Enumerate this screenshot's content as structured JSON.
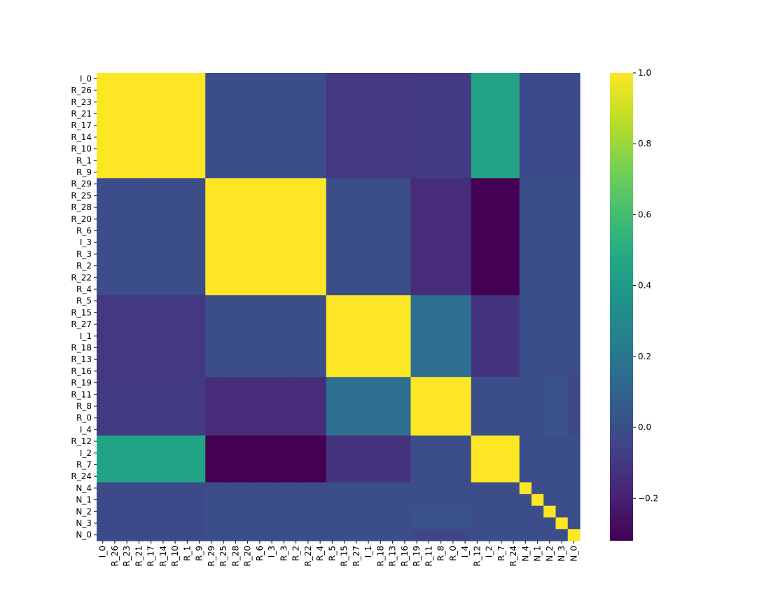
{
  "chart_data": {
    "type": "heatmap",
    "title": "",
    "xlabel": "",
    "ylabel": "",
    "colormap": "viridis",
    "vmin": -0.32,
    "vmax": 1.0,
    "colorbar_ticks": [
      {
        "value": 1.0,
        "label": "1.0"
      },
      {
        "value": 0.8,
        "label": "0.8"
      },
      {
        "value": 0.6,
        "label": "0.6"
      },
      {
        "value": 0.4,
        "label": "0.4"
      },
      {
        "value": 0.2,
        "label": "0.2"
      },
      {
        "value": 0.0,
        "label": "0.0"
      },
      {
        "value": -0.2,
        "label": "−0.2"
      }
    ],
    "labels": [
      "I_0",
      "R_26",
      "R_23",
      "R_21",
      "R_17",
      "R_14",
      "R_10",
      "R_1",
      "R_9",
      "R_29",
      "R_25",
      "R_28",
      "R_20",
      "R_6",
      "I_3",
      "R_3",
      "R_2",
      "R_22",
      "R_4",
      "R_5",
      "R_15",
      "R_27",
      "I_1",
      "R_18",
      "R_13",
      "R_16",
      "R_19",
      "R_11",
      "R_8",
      "R_0",
      "I_4",
      "R_12",
      "I_2",
      "R_7",
      "R_24",
      "N_4",
      "N_1",
      "N_2",
      "N_3",
      "N_0"
    ],
    "groups": [
      {
        "labels": [
          "I_0",
          "R_26",
          "R_23",
          "R_21",
          "R_17",
          "R_14",
          "R_10",
          "R_1",
          "R_9"
        ]
      },
      {
        "labels": [
          "R_29",
          "R_25",
          "R_28",
          "R_20",
          "R_6",
          "I_3",
          "R_3",
          "R_2",
          "R_22",
          "R_4"
        ]
      },
      {
        "labels": [
          "R_5",
          "R_15",
          "R_27",
          "I_1",
          "R_18",
          "R_13",
          "R_16"
        ]
      },
      {
        "labels": [
          "R_19",
          "R_11",
          "R_8",
          "R_0",
          "I_4"
        ]
      },
      {
        "labels": [
          "R_12",
          "I_2",
          "R_7",
          "R_24"
        ]
      },
      {
        "labels": [
          "N_4"
        ]
      },
      {
        "labels": [
          "N_1"
        ]
      },
      {
        "labels": [
          "N_2"
        ]
      },
      {
        "labels": [
          "N_3"
        ]
      },
      {
        "labels": [
          "N_0"
        ]
      }
    ],
    "block_correlations": [
      [
        1.0,
        0.0,
        -0.1,
        -0.09,
        0.45,
        -0.02,
        -0.02,
        -0.02,
        -0.02,
        -0.02
      ],
      [
        0.0,
        1.0,
        0.0,
        -0.15,
        -0.32,
        0.0,
        0.0,
        0.0,
        0.0,
        0.0
      ],
      [
        -0.1,
        0.0,
        1.0,
        0.16,
        -0.12,
        0.0,
        0.0,
        0.0,
        0.0,
        0.0
      ],
      [
        -0.09,
        -0.15,
        0.16,
        1.0,
        0.0,
        0.0,
        0.0,
        0.02,
        0.02,
        -0.03
      ],
      [
        0.45,
        -0.32,
        -0.12,
        0.0,
        1.0,
        0.0,
        0.0,
        0.0,
        0.0,
        0.0
      ],
      [
        -0.02,
        0.0,
        0.0,
        0.0,
        0.0,
        1.0,
        0.0,
        0.0,
        0.0,
        0.0
      ],
      [
        -0.02,
        0.0,
        0.0,
        0.0,
        0.0,
        0.0,
        1.0,
        0.0,
        0.0,
        0.0
      ],
      [
        -0.02,
        0.0,
        0.0,
        0.02,
        0.0,
        0.0,
        0.0,
        1.0,
        0.0,
        0.0
      ],
      [
        -0.02,
        0.0,
        0.0,
        0.02,
        0.0,
        0.0,
        0.0,
        0.0,
        1.0,
        0.0
      ],
      [
        -0.02,
        0.0,
        0.0,
        -0.03,
        0.0,
        0.0,
        0.0,
        0.0,
        0.0,
        1.0
      ]
    ]
  }
}
